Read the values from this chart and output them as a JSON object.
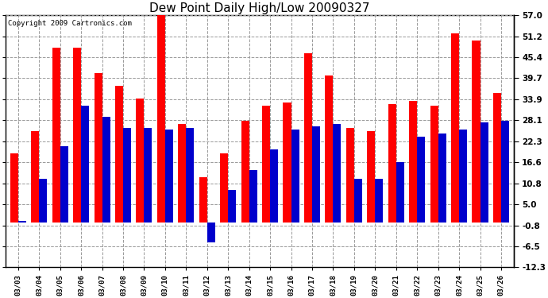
{
  "title": "Dew Point Daily High/Low 20090327",
  "copyright": "Copyright 2009 Cartronics.com",
  "dates": [
    "03/03",
    "03/04",
    "03/05",
    "03/06",
    "03/07",
    "03/08",
    "03/09",
    "03/10",
    "03/11",
    "03/12",
    "03/13",
    "03/14",
    "03/15",
    "03/16",
    "03/17",
    "03/18",
    "03/19",
    "03/20",
    "03/21",
    "03/22",
    "03/23",
    "03/24",
    "03/25",
    "03/26"
  ],
  "highs": [
    19.0,
    25.0,
    48.0,
    48.0,
    41.0,
    37.5,
    34.0,
    57.5,
    27.0,
    12.5,
    19.0,
    28.0,
    32.0,
    33.0,
    46.5,
    40.5,
    26.0,
    25.0,
    32.5,
    33.5,
    32.0,
    52.0,
    50.0,
    35.5
  ],
  "lows": [
    0.5,
    12.0,
    21.0,
    32.0,
    29.0,
    26.0,
    26.0,
    25.5,
    26.0,
    -5.5,
    9.0,
    14.5,
    20.0,
    25.5,
    26.5,
    27.0,
    12.0,
    12.0,
    16.5,
    23.5,
    24.5,
    25.5,
    27.5,
    28.0
  ],
  "high_color": "#ff0000",
  "low_color": "#0000cc",
  "background_color": "#ffffff",
  "grid_color": "#999999",
  "title_fontsize": 11,
  "ytick_values": [
    57.0,
    51.2,
    45.4,
    39.7,
    33.9,
    28.1,
    22.3,
    16.6,
    10.8,
    5.0,
    -0.8,
    -6.5,
    -12.3
  ],
  "ylim": [
    -12.3,
    57.0
  ]
}
